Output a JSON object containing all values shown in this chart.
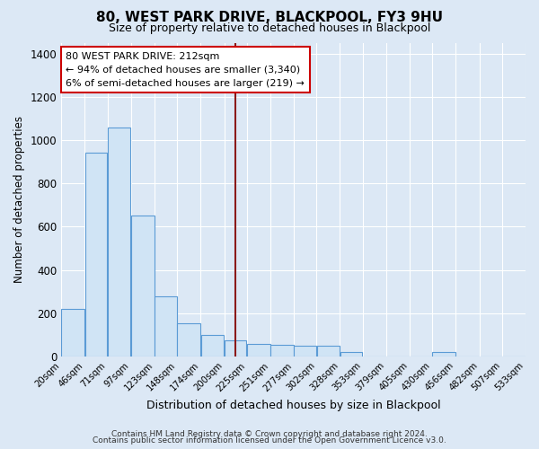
{
  "title": "80, WEST PARK DRIVE, BLACKPOOL, FY3 9HU",
  "subtitle": "Size of property relative to detached houses in Blackpool",
  "xlabel": "Distribution of detached houses by size in Blackpool",
  "ylabel": "Number of detached properties",
  "bar_color": "#d0e4f5",
  "bar_edge_color": "#5b9bd5",
  "background_color": "#dce8f5",
  "plot_bg_color": "#dce8f5",
  "annotation_text": "80 WEST PARK DRIVE: 212sqm\n← 94% of detached houses are smaller (3,340)\n6% of semi-detached houses are larger (219) →",
  "vline_x": 212,
  "vline_color": "#8b1a1a",
  "bins": [
    20,
    46,
    71,
    97,
    123,
    148,
    174,
    200,
    225,
    251,
    277,
    302,
    328,
    353,
    379,
    405,
    430,
    456,
    482,
    507,
    533
  ],
  "bin_labels": [
    "20sqm",
    "46sqm",
    "71sqm",
    "97sqm",
    "123sqm",
    "148sqm",
    "174sqm",
    "200sqm",
    "225sqm",
    "251sqm",
    "277sqm",
    "302sqm",
    "328sqm",
    "353sqm",
    "379sqm",
    "405sqm",
    "430sqm",
    "456sqm",
    "482sqm",
    "507sqm",
    "533sqm"
  ],
  "counts": [
    220,
    940,
    1060,
    650,
    280,
    155,
    100,
    75,
    60,
    55,
    50,
    50,
    20,
    0,
    0,
    0,
    20,
    0,
    0,
    0
  ],
  "ylim": [
    0,
    1450
  ],
  "yticks": [
    0,
    200,
    400,
    600,
    800,
    1000,
    1200,
    1400
  ],
  "footer1": "Contains HM Land Registry data © Crown copyright and database right 2024.",
  "footer2": "Contains public sector information licensed under the Open Government Licence v3.0."
}
